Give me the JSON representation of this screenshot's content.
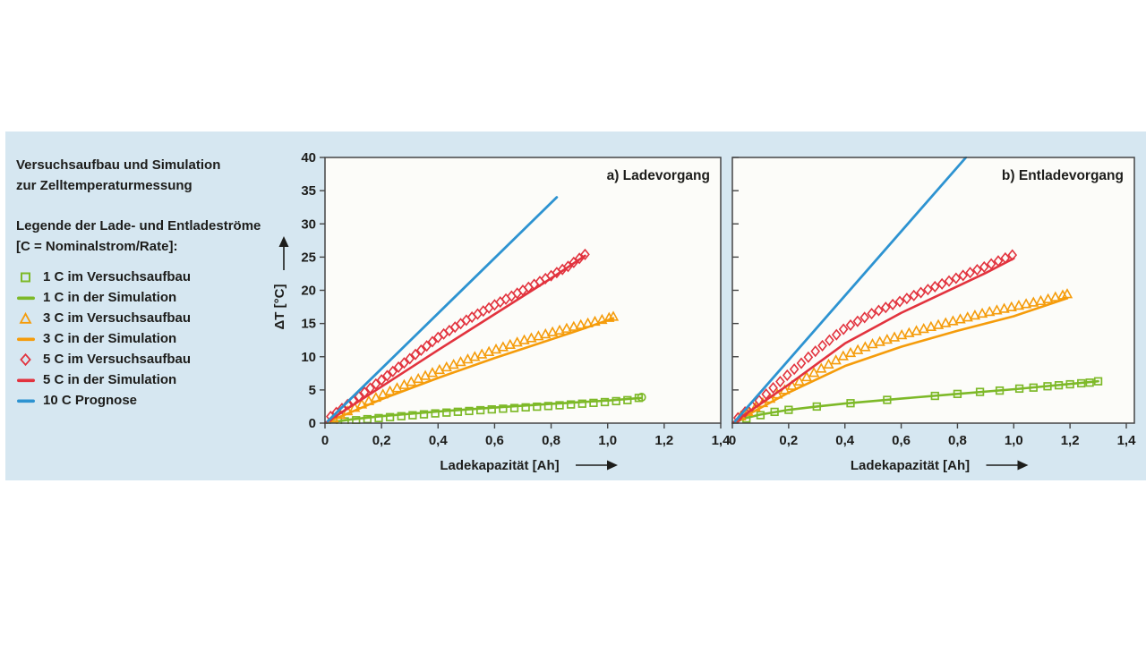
{
  "panel": {
    "background_color": "#d6e7f1",
    "plot_background_color": "#fcfcf9",
    "frame_color": "#454545",
    "text_color": "#1d1d1b",
    "heading_line1": "Versuchsaufbau und Simulation",
    "heading_line2": "zur Zelltemperaturmessung",
    "legend_title_line1": "Legende der Lade- und Entladeströme",
    "legend_title_line2": "[C = Nominalstrom/Rate]:",
    "legend_items": [
      {
        "marker": "square",
        "color": "#7db928",
        "label": "1 C im Versuchsaufbau"
      },
      {
        "marker": "line",
        "color": "#7db928",
        "label": "1 C in der Simulation"
      },
      {
        "marker": "triangle",
        "color": "#f59c0b",
        "label": "3 C im Versuchsaufbau"
      },
      {
        "marker": "line",
        "color": "#f59c0b",
        "label": "3 C in der Simulation"
      },
      {
        "marker": "diamond",
        "color": "#e2333e",
        "label": "5 C im Versuchsaufbau"
      },
      {
        "marker": "line",
        "color": "#e2333e",
        "label": "5 C in der Simulation"
      },
      {
        "marker": "line",
        "color": "#2d93d1",
        "label": "10 C Prognose"
      }
    ]
  },
  "chart_data": [
    {
      "type": "line",
      "title": "a) Ladevorgang",
      "xlabel": "Ladekapazität [Ah]",
      "ylabel": "ΔT [°C]",
      "xlim": [
        0,
        1.4
      ],
      "ylim": [
        0,
        40
      ],
      "xtick_values": [
        0,
        0.2,
        0.4,
        0.6,
        0.8,
        1.0,
        1.2,
        1.4
      ],
      "xtick_labels": [
        "0",
        "0,2",
        "0,4",
        "0,6",
        "0,8",
        "1,0",
        "1,2",
        "1,4"
      ],
      "ytick_values": [
        0,
        5,
        10,
        15,
        20,
        25,
        30,
        35,
        40
      ],
      "ytick_labels": [
        "0",
        "5",
        "10",
        "15",
        "20",
        "25",
        "30",
        "35",
        "40"
      ],
      "show_ytick_labels": true,
      "grid": false,
      "legend_position": "external-left",
      "series": [
        {
          "name": "1 C in der Simulation",
          "kind": "line",
          "color": "#7db928",
          "width": 2.6,
          "points": [
            [
              0,
              0
            ],
            [
              0.1,
              0.6
            ],
            [
              0.2,
              1.05
            ],
            [
              0.4,
              1.75
            ],
            [
              0.6,
              2.35
            ],
            [
              0.8,
              2.9
            ],
            [
              1.0,
              3.4
            ],
            [
              1.12,
              3.8
            ]
          ]
        },
        {
          "name": "1 C im Versuchsaufbau",
          "kind": "markers",
          "marker": "square",
          "color": "#7db928",
          "marker_step": 0.04,
          "marker_end": "circle",
          "points": [
            [
              0.03,
              0.1
            ],
            [
              0.1,
              0.4
            ],
            [
              0.2,
              0.8
            ],
            [
              0.3,
              1.15
            ],
            [
              0.4,
              1.5
            ],
            [
              0.5,
              1.8
            ],
            [
              0.6,
              2.1
            ],
            [
              0.7,
              2.35
            ],
            [
              0.8,
              2.6
            ],
            [
              0.9,
              2.9
            ],
            [
              1.0,
              3.2
            ],
            [
              1.08,
              3.5
            ],
            [
              1.12,
              3.9
            ]
          ]
        },
        {
          "name": "3 C in der Simulation",
          "kind": "line",
          "color": "#f59c0b",
          "width": 2.6,
          "points": [
            [
              0,
              0
            ],
            [
              0.2,
              3.6
            ],
            [
              0.4,
              6.8
            ],
            [
              0.6,
              9.8
            ],
            [
              0.8,
              12.6
            ],
            [
              0.92,
              14.3
            ],
            [
              1.02,
              15.8
            ]
          ]
        },
        {
          "name": "3 C im Versuchsaufbau",
          "kind": "markers",
          "marker": "triangle",
          "color": "#f59c0b",
          "marker_step": 0.025,
          "points": [
            [
              0.03,
              0.7
            ],
            [
              0.1,
              2.2
            ],
            [
              0.2,
              4.2
            ],
            [
              0.3,
              6.1
            ],
            [
              0.4,
              7.9
            ],
            [
              0.5,
              9.5
            ],
            [
              0.6,
              11.0
            ],
            [
              0.7,
              12.4
            ],
            [
              0.8,
              13.6
            ],
            [
              0.9,
              14.7
            ],
            [
              0.96,
              15.3
            ],
            [
              1.02,
              16.0
            ]
          ]
        },
        {
          "name": "5 C in der Simulation",
          "kind": "line",
          "color": "#e2333e",
          "width": 2.6,
          "points": [
            [
              0,
              0
            ],
            [
              0.2,
              5.5
            ],
            [
              0.4,
              11.0
            ],
            [
              0.6,
              16.4
            ],
            [
              0.8,
              21.8
            ],
            [
              0.92,
              25.2
            ]
          ]
        },
        {
          "name": "5 C im Versuchsaufbau",
          "kind": "markers",
          "marker": "diamond",
          "color": "#e2333e",
          "marker_step": 0.02,
          "points": [
            [
              0.02,
              1.0
            ],
            [
              0.1,
              3.4
            ],
            [
              0.2,
              6.5
            ],
            [
              0.3,
              9.7
            ],
            [
              0.4,
              12.9
            ],
            [
              0.5,
              15.5
            ],
            [
              0.6,
              17.8
            ],
            [
              0.7,
              20.0
            ],
            [
              0.8,
              22.2
            ],
            [
              0.86,
              23.6
            ],
            [
              0.92,
              25.4
            ]
          ]
        },
        {
          "name": "10 C Prognose",
          "kind": "line",
          "color": "#2d93d1",
          "width": 2.8,
          "points": [
            [
              0.01,
              0.3
            ],
            [
              0.82,
              34
            ]
          ]
        }
      ]
    },
    {
      "type": "line",
      "title": "b) Entladevorgang",
      "xlabel": "Ladekapazität [Ah]",
      "ylabel": "",
      "xlim": [
        0,
        1.4
      ],
      "ylim": [
        0,
        40
      ],
      "xtick_values": [
        0,
        0.2,
        0.4,
        0.6,
        0.8,
        1.0,
        1.2,
        1.4
      ],
      "xtick_labels": [
        "0",
        "0,2",
        "0,4",
        "0,6",
        "0,8",
        "1,0",
        "1,2",
        "1,4"
      ],
      "ytick_values": [
        0,
        5,
        10,
        15,
        20,
        25,
        30,
        35,
        40
      ],
      "ytick_labels": [],
      "show_ytick_labels": false,
      "grid": false,
      "legend_position": "external-left",
      "series": [
        {
          "name": "1 C in der Simulation",
          "kind": "line",
          "color": "#7db928",
          "width": 2.6,
          "points": [
            [
              0,
              0
            ],
            [
              0.05,
              0.8
            ],
            [
              0.1,
              1.3
            ],
            [
              0.2,
              2.0
            ],
            [
              0.3,
              2.5
            ],
            [
              0.4,
              2.95
            ],
            [
              0.6,
              3.7
            ],
            [
              0.8,
              4.4
            ],
            [
              1.0,
              5.1
            ],
            [
              1.2,
              5.9
            ],
            [
              1.3,
              6.3
            ]
          ]
        },
        {
          "name": "1 C im Versuchsaufbau",
          "kind": "markers",
          "marker": "square",
          "color": "#7db928",
          "points": [
            [
              0.05,
              0.7
            ],
            [
              0.1,
              1.2
            ],
            [
              0.15,
              1.7
            ],
            [
              0.2,
              2.0
            ],
            [
              0.3,
              2.5
            ],
            [
              0.42,
              3.0
            ],
            [
              0.55,
              3.5
            ],
            [
              0.72,
              4.1
            ],
            [
              0.8,
              4.4
            ],
            [
              0.88,
              4.7
            ],
            [
              0.95,
              4.9
            ],
            [
              1.02,
              5.2
            ],
            [
              1.07,
              5.35
            ],
            [
              1.12,
              5.55
            ],
            [
              1.16,
              5.7
            ],
            [
              1.2,
              5.85
            ],
            [
              1.24,
              6.0
            ],
            [
              1.27,
              6.1
            ],
            [
              1.3,
              6.3
            ]
          ]
        },
        {
          "name": "3 C in der Simulation",
          "kind": "line",
          "color": "#f59c0b",
          "width": 2.6,
          "points": [
            [
              0,
              0
            ],
            [
              0.2,
              4.6
            ],
            [
              0.4,
              8.6
            ],
            [
              0.6,
              11.5
            ],
            [
              0.8,
              13.9
            ],
            [
              1.0,
              16.1
            ],
            [
              1.19,
              18.8
            ]
          ]
        },
        {
          "name": "3 C im Versuchsaufbau",
          "kind": "markers",
          "marker": "triangle",
          "color": "#f59c0b",
          "marker_step": 0.026,
          "points": [
            [
              0.03,
              1.0
            ],
            [
              0.1,
              2.8
            ],
            [
              0.2,
              5.3
            ],
            [
              0.3,
              7.8
            ],
            [
              0.4,
              10.2
            ],
            [
              0.5,
              11.9
            ],
            [
              0.6,
              13.2
            ],
            [
              0.7,
              14.4
            ],
            [
              0.8,
              15.5
            ],
            [
              0.9,
              16.6
            ],
            [
              1.0,
              17.5
            ],
            [
              1.1,
              18.4
            ],
            [
              1.19,
              19.4
            ]
          ]
        },
        {
          "name": "5 C in der Simulation",
          "kind": "line",
          "color": "#e2333e",
          "width": 2.6,
          "points": [
            [
              0,
              0
            ],
            [
              0.2,
              5.8
            ],
            [
              0.4,
              12.0
            ],
            [
              0.6,
              16.6
            ],
            [
              0.8,
              20.6
            ],
            [
              0.9,
              22.6
            ],
            [
              1.0,
              24.8
            ]
          ]
        },
        {
          "name": "5 C im Versuchsaufbau",
          "kind": "markers",
          "marker": "diamond",
          "color": "#e2333e",
          "marker_step": 0.025,
          "points": [
            [
              0.02,
              0.8
            ],
            [
              0.1,
              3.6
            ],
            [
              0.2,
              7.4
            ],
            [
              0.3,
              11.0
            ],
            [
              0.4,
              14.3
            ],
            [
              0.5,
              16.6
            ],
            [
              0.6,
              18.4
            ],
            [
              0.7,
              20.2
            ],
            [
              0.8,
              21.9
            ],
            [
              0.9,
              23.6
            ],
            [
              1.0,
              25.4
            ]
          ]
        },
        {
          "name": "10 C Prognose",
          "kind": "line",
          "color": "#2d93d1",
          "width": 2.8,
          "points": [
            [
              0.01,
              0.3
            ],
            [
              0.83,
              40
            ]
          ]
        }
      ]
    }
  ]
}
